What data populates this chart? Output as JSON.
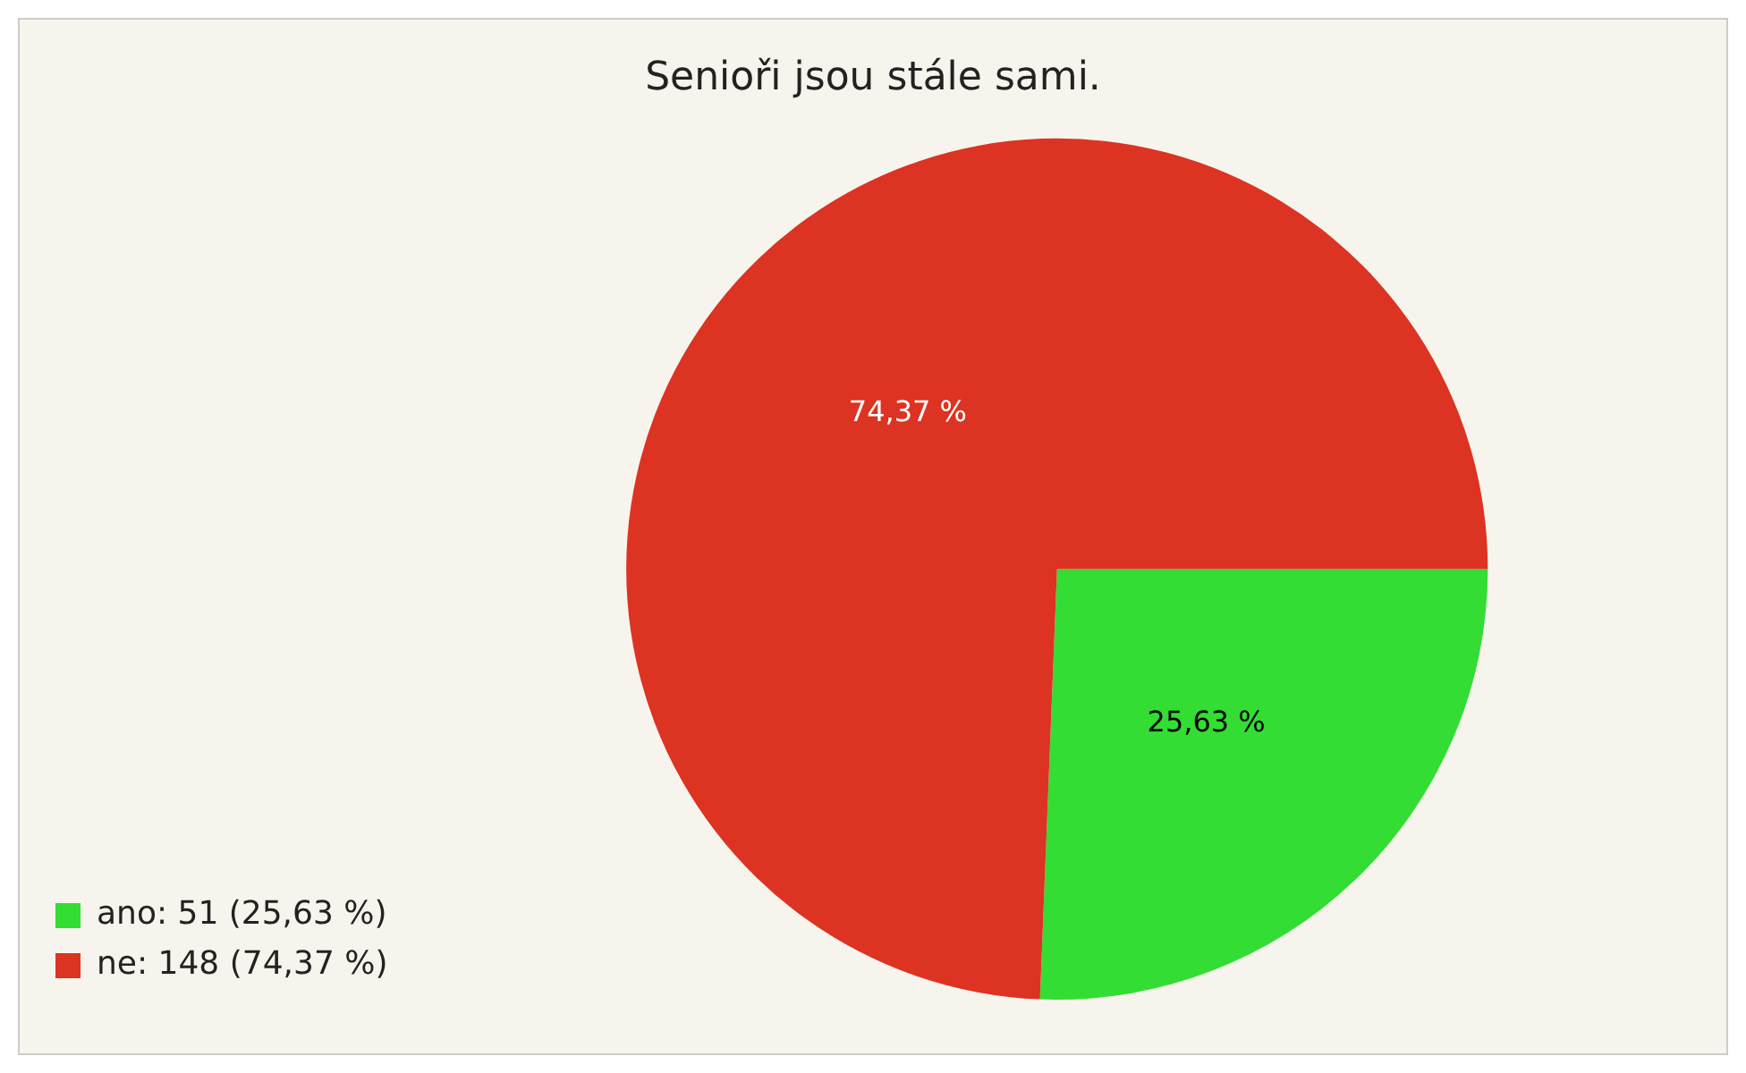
{
  "chart_data": {
    "type": "pie",
    "title": "Senioři jsou stále sami.",
    "categories": [
      "ano: 51 (25,63 %)",
      "ne: 148 (74,37 %)"
    ],
    "values": [
      25.63,
      74.37
    ],
    "colors": [
      "#33dd33",
      "#dd3322"
    ],
    "value_labels": [
      "25,63 %",
      "74,37 %"
    ],
    "legend": "bottom left"
  }
}
